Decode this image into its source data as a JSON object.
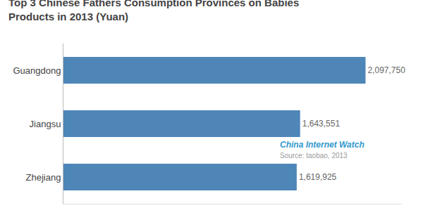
{
  "chart_data": {
    "type": "bar",
    "orientation": "horizontal",
    "title": "Top 3 Chinese Fathers Consumption Provinces on Babies\nProducts in 2013 (Yuan)",
    "categories": [
      "Zhejiang",
      "Jiangsu",
      "Guangdong"
    ],
    "values": [
      1619925,
      1643551,
      2097750
    ],
    "value_labels": [
      "1,619,925",
      "1,643,551",
      "2,097,750"
    ],
    "data_labels": true,
    "color": "#4e86b8",
    "xlim": [
      0,
      2350000
    ],
    "tick_labels": "y",
    "grid": false,
    "annotations": [
      {
        "text": "China Internet Watch",
        "color": "#3399cc"
      },
      {
        "text": "Source: taobao, 2013",
        "color": "#999999"
      }
    ]
  }
}
